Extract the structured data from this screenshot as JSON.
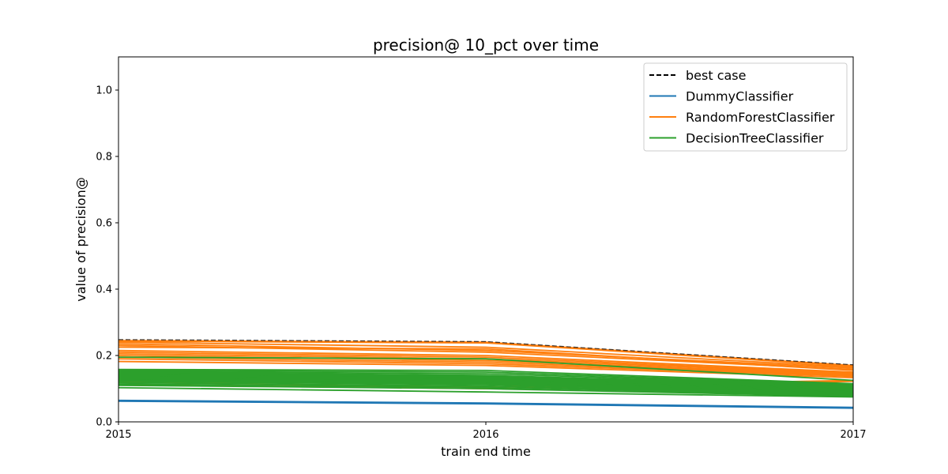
{
  "chart_data": {
    "type": "line",
    "title": "precision@ 10_pct over time",
    "xlabel": "train end time",
    "ylabel": "value of precision@",
    "x": [
      "2015",
      "2016",
      "2017"
    ],
    "xlim": [
      2015,
      2017
    ],
    "ylim": [
      0,
      1.1
    ],
    "yticks": [
      "0.0",
      "0.2",
      "0.4",
      "0.6",
      "0.8",
      "1.0"
    ],
    "grid": false,
    "legend_position": "top-right",
    "legend": [
      {
        "label": "best case",
        "color": "#000000",
        "style": "dashed"
      },
      {
        "label": "DummyClassifier",
        "color": "#1f77b4",
        "style": "solid"
      },
      {
        "label": "RandomForestClassifier",
        "color": "#ff7f0e",
        "style": "solid"
      },
      {
        "label": "DecisionTreeClassifier",
        "color": "#2ca02c",
        "style": "solid"
      }
    ],
    "series": [
      {
        "group": "DummyClassifier",
        "color": "#1f77b4",
        "values": [
          0.064,
          0.056,
          0.043
        ]
      },
      {
        "group": "DummyClassifier",
        "color": "#1f77b4",
        "values": [
          0.063,
          0.055,
          0.042
        ]
      },
      {
        "group": "DummyClassifier",
        "color": "#1f77b4",
        "values": [
          0.065,
          0.057,
          0.044
        ]
      },
      {
        "group": "DummyClassifier",
        "color": "#1f77b4",
        "values": [
          0.062,
          0.054,
          0.041
        ]
      },
      {
        "group": "RandomForestClassifier",
        "color": "#ff7f0e",
        "values": [
          0.245,
          0.24,
          0.17
        ]
      },
      {
        "group": "RandomForestClassifier",
        "color": "#ff7f0e",
        "values": [
          0.243,
          0.238,
          0.168
        ]
      },
      {
        "group": "RandomForestClassifier",
        "color": "#ff7f0e",
        "values": [
          0.24,
          0.225,
          0.165
        ]
      },
      {
        "group": "RandomForestClassifier",
        "color": "#ff7f0e",
        "values": [
          0.235,
          0.215,
          0.162
        ]
      },
      {
        "group": "RandomForestClassifier",
        "color": "#ff7f0e",
        "values": [
          0.23,
          0.21,
          0.158
        ]
      },
      {
        "group": "RandomForestClassifier",
        "color": "#ff7f0e",
        "values": [
          0.225,
          0.22,
          0.155
        ]
      },
      {
        "group": "RandomForestClassifier",
        "color": "#ff7f0e",
        "values": [
          0.215,
          0.2,
          0.15
        ]
      },
      {
        "group": "RandomForestClassifier",
        "color": "#ff7f0e",
        "values": [
          0.21,
          0.195,
          0.147
        ]
      },
      {
        "group": "RandomForestClassifier",
        "color": "#ff7f0e",
        "values": [
          0.205,
          0.19,
          0.145
        ]
      },
      {
        "group": "RandomForestClassifier",
        "color": "#ff7f0e",
        "values": [
          0.2,
          0.185,
          0.142
        ]
      },
      {
        "group": "RandomForestClassifier",
        "color": "#ff7f0e",
        "values": [
          0.195,
          0.18,
          0.14
        ]
      },
      {
        "group": "RandomForestClassifier",
        "color": "#ff7f0e",
        "values": [
          0.19,
          0.175,
          0.137
        ]
      },
      {
        "group": "RandomForestClassifier",
        "color": "#ff7f0e",
        "values": [
          0.182,
          0.17,
          0.133
        ]
      },
      {
        "group": "RandomForestClassifier",
        "color": "#ff7f0e",
        "values": [
          0.12,
          0.105,
          0.125
        ]
      },
      {
        "group": "RandomForestClassifier",
        "color": "#ff7f0e",
        "values": [
          0.112,
          0.1,
          0.122
        ]
      },
      {
        "group": "DecisionTreeClassifier",
        "color": "#2ca02c",
        "values": [
          0.158,
          0.155,
          0.115
        ]
      },
      {
        "group": "DecisionTreeClassifier",
        "color": "#2ca02c",
        "values": [
          0.155,
          0.15,
          0.112
        ]
      },
      {
        "group": "DecisionTreeClassifier",
        "color": "#2ca02c",
        "values": [
          0.152,
          0.145,
          0.11
        ]
      },
      {
        "group": "DecisionTreeClassifier",
        "color": "#2ca02c",
        "values": [
          0.15,
          0.14,
          0.108
        ]
      },
      {
        "group": "DecisionTreeClassifier",
        "color": "#2ca02c",
        "values": [
          0.147,
          0.138,
          0.105
        ]
      },
      {
        "group": "DecisionTreeClassifier",
        "color": "#2ca02c",
        "values": [
          0.145,
          0.135,
          0.103
        ]
      },
      {
        "group": "DecisionTreeClassifier",
        "color": "#2ca02c",
        "values": [
          0.142,
          0.132,
          0.1
        ]
      },
      {
        "group": "DecisionTreeClassifier",
        "color": "#2ca02c",
        "values": [
          0.14,
          0.13,
          0.098
        ]
      },
      {
        "group": "DecisionTreeClassifier",
        "color": "#2ca02c",
        "values": [
          0.137,
          0.127,
          0.096
        ]
      },
      {
        "group": "DecisionTreeClassifier",
        "color": "#2ca02c",
        "values": [
          0.135,
          0.125,
          0.094
        ]
      },
      {
        "group": "DecisionTreeClassifier",
        "color": "#2ca02c",
        "values": [
          0.132,
          0.122,
          0.092
        ]
      },
      {
        "group": "DecisionTreeClassifier",
        "color": "#2ca02c",
        "values": [
          0.13,
          0.12,
          0.09
        ]
      },
      {
        "group": "DecisionTreeClassifier",
        "color": "#2ca02c",
        "values": [
          0.127,
          0.117,
          0.088
        ]
      },
      {
        "group": "DecisionTreeClassifier",
        "color": "#2ca02c",
        "values": [
          0.125,
          0.115,
          0.086
        ]
      },
      {
        "group": "DecisionTreeClassifier",
        "color": "#2ca02c",
        "values": [
          0.122,
          0.112,
          0.084
        ]
      },
      {
        "group": "DecisionTreeClassifier",
        "color": "#2ca02c",
        "values": [
          0.118,
          0.108,
          0.082
        ]
      },
      {
        "group": "DecisionTreeClassifier",
        "color": "#2ca02c",
        "values": [
          0.114,
          0.104,
          0.08
        ]
      },
      {
        "group": "DecisionTreeClassifier",
        "color": "#2ca02c",
        "values": [
          0.11,
          0.1,
          0.077
        ]
      },
      {
        "group": "DecisionTreeClassifier",
        "color": "#2ca02c",
        "values": [
          0.103,
          0.09,
          0.075
        ]
      },
      {
        "group": "DecisionTreeClassifier",
        "color": "#2ca02c",
        "values": [
          0.195,
          0.19,
          0.125
        ]
      }
    ],
    "best_case": [
      0.248,
      0.242,
      0.172
    ]
  }
}
